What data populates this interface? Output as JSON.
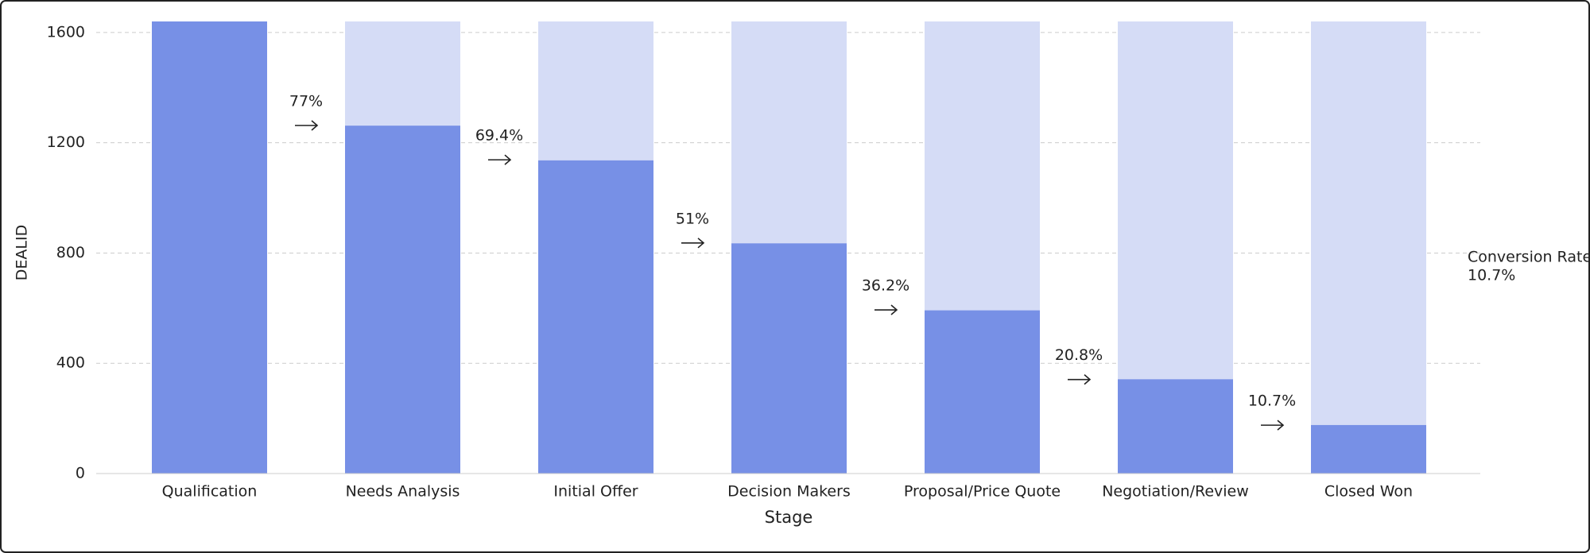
{
  "chart_data": {
    "type": "funnel-bar",
    "y_label": "DEALID",
    "x_label": "Stage",
    "categories": [
      "Qualification",
      "Needs Analysis",
      "Initial Offer",
      "Decision Makers",
      "Proposal/Price Quote",
      "Negotiation/Review",
      "Closed Won"
    ],
    "values": [
      1640,
      1262,
      1136,
      835,
      592,
      342,
      176
    ],
    "color": "#7790e6",
    "background_color": "#d5dcf6",
    "conversion_rates": [
      77,
      69.4,
      51,
      36.2,
      20.8,
      10.7
    ],
    "conversion_rate_labels": [
      "77%",
      "69.4%",
      "51%",
      "36.2%",
      "20.8%",
      "10.7%"
    ],
    "annotation": [
      "Conversion Rate:",
      "10.7%"
    ],
    "ylim": [
      0,
      1640
    ],
    "yticks": [
      0,
      400,
      800,
      1200,
      1600
    ],
    "grid": true
  }
}
